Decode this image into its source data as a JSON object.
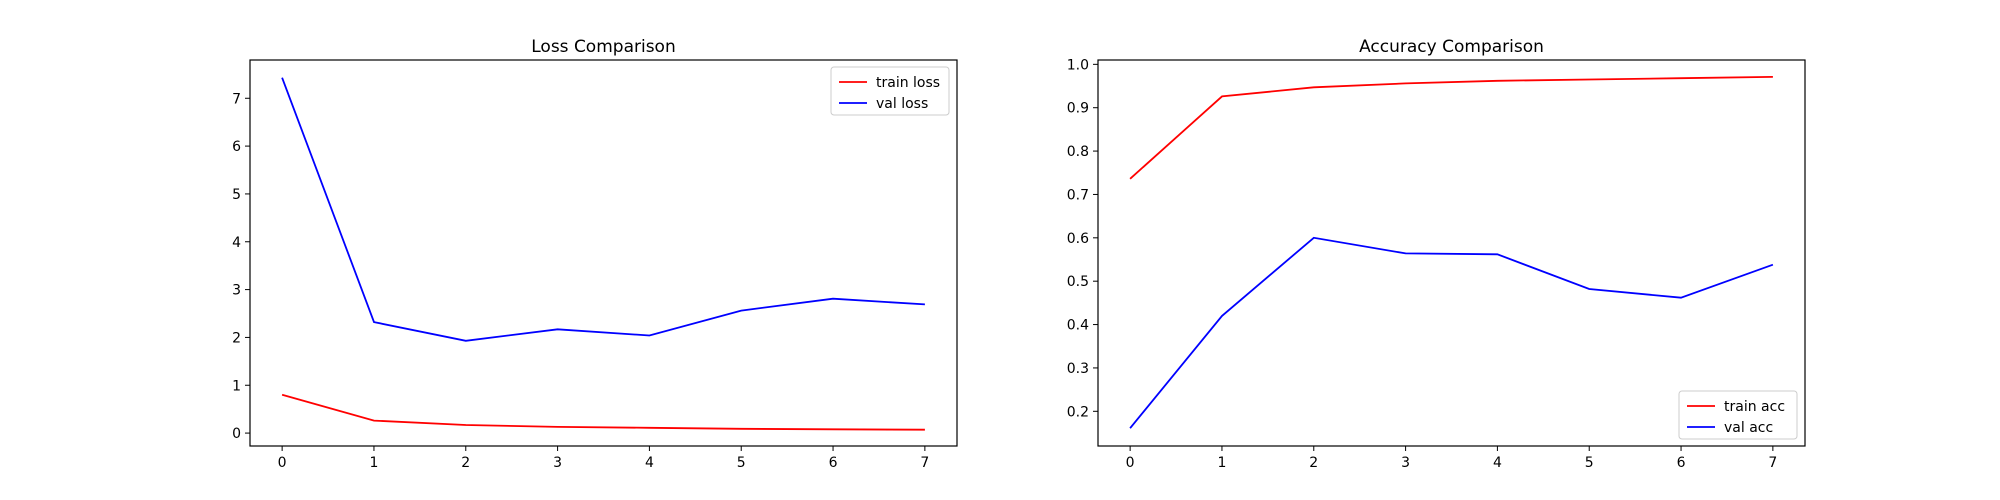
{
  "chart_data": [
    {
      "type": "line",
      "title": "Loss Comparison",
      "xlabel": "",
      "ylabel": "",
      "x": [
        0,
        1,
        2,
        3,
        4,
        5,
        6,
        7
      ],
      "xticks": [
        "0",
        "1",
        "2",
        "3",
        "4",
        "5",
        "6",
        "7"
      ],
      "yticks": [
        "0",
        "1",
        "2",
        "3",
        "4",
        "5",
        "6",
        "7"
      ],
      "ylim": [
        -0.27,
        7.8
      ],
      "xlim": [
        -0.35,
        7.35
      ],
      "grid": false,
      "legend": "top-right",
      "series": [
        {
          "name": "train loss",
          "color": "#ff0000",
          "values": [
            0.8,
            0.26,
            0.17,
            0.13,
            0.11,
            0.09,
            0.08,
            0.07
          ]
        },
        {
          "name": "val loss",
          "color": "#0000ff",
          "values": [
            7.43,
            2.32,
            1.93,
            2.17,
            2.04,
            2.56,
            2.81,
            2.69
          ]
        }
      ]
    },
    {
      "type": "line",
      "title": "Accuracy Comparison",
      "xlabel": "",
      "ylabel": "",
      "x": [
        0,
        1,
        2,
        3,
        4,
        5,
        6,
        7
      ],
      "xticks": [
        "0",
        "1",
        "2",
        "3",
        "4",
        "5",
        "6",
        "7"
      ],
      "yticks": [
        "0.2",
        "0.3",
        "0.4",
        "0.5",
        "0.6",
        "0.7",
        "0.8",
        "0.9",
        "1.0"
      ],
      "ylim": [
        0.12,
        1.01
      ],
      "xlim": [
        -0.35,
        7.35
      ],
      "grid": false,
      "legend": "bottom-right",
      "series": [
        {
          "name": "train acc",
          "color": "#ff0000",
          "values": [
            0.736,
            0.926,
            0.947,
            0.956,
            0.962,
            0.965,
            0.968,
            0.971
          ]
        },
        {
          "name": "val acc",
          "color": "#0000ff",
          "values": [
            0.161,
            0.42,
            0.6,
            0.564,
            0.562,
            0.482,
            0.462,
            0.538
          ]
        }
      ]
    }
  ]
}
